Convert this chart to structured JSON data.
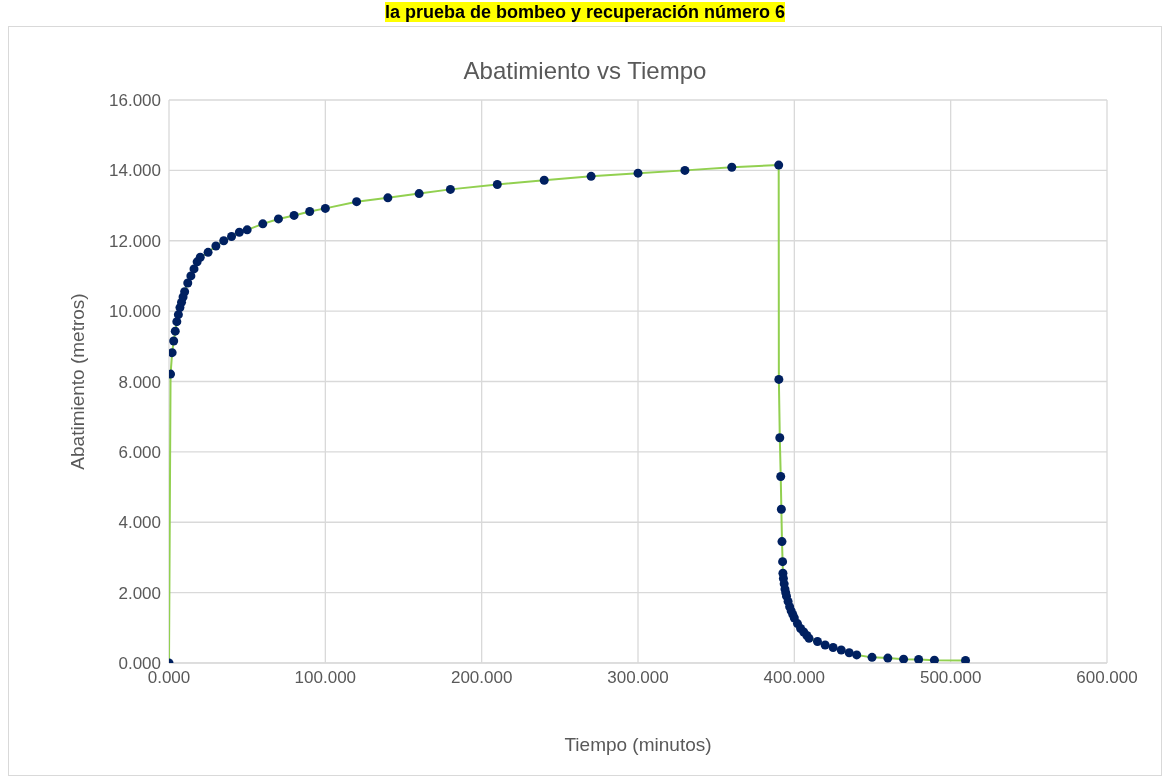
{
  "chart_data": {
    "type": "line",
    "title": "Abatimiento vs Tiempo",
    "xlabel": "Tiempo (minutos)",
    "ylabel": "Abatimiento (metros)",
    "annotations": [
      "la prueba de bombeo y recuperación número 6"
    ],
    "x": [
      0,
      1,
      2,
      3,
      4,
      5,
      6,
      7,
      8,
      9,
      10,
      12,
      14,
      16,
      18,
      20,
      25,
      30,
      35,
      40,
      45,
      50,
      60,
      70,
      80,
      90,
      100,
      120,
      140,
      160,
      180,
      210,
      240,
      270,
      300,
      330,
      360,
      390,
      390.1,
      390.7,
      391.3,
      391.7,
      392.1,
      392.5,
      392.7,
      393,
      393.5,
      394,
      394.5,
      395,
      396,
      397,
      398,
      399,
      400,
      402,
      404,
      406,
      408,
      409.4,
      414.8,
      419.7,
      424.8,
      430,
      435.1,
      439.9,
      449.7,
      459.8,
      469.9,
      479.5,
      489.6,
      509.5
    ],
    "series": [
      {
        "color": "#92d050",
        "values": [
          0,
          8.21,
          8.82,
          9.15,
          9.43,
          9.7,
          9.9,
          10.1,
          10.25,
          10.4,
          10.55,
          10.8,
          11.0,
          11.2,
          11.4,
          11.53,
          11.67,
          11.85,
          12.0,
          12.12,
          12.24,
          12.31,
          12.48,
          12.62,
          12.72,
          12.83,
          12.92,
          13.11,
          13.22,
          13.34,
          13.46,
          13.6,
          13.72,
          13.83,
          13.92,
          14.0,
          14.09,
          14.15,
          8.06,
          6.4,
          5.3,
          4.37,
          3.45,
          2.88,
          2.55,
          2.4,
          2.25,
          2.1,
          2.0,
          1.9,
          1.75,
          1.6,
          1.48,
          1.38,
          1.28,
          1.12,
          0.98,
          0.88,
          0.78,
          0.7,
          0.61,
          0.51,
          0.44,
          0.37,
          0.29,
          0.23,
          0.16,
          0.14,
          0.11,
          0.1,
          0.08,
          0.07
        ]
      }
    ],
    "marker": "circle",
    "line_style": "solid",
    "grid": true,
    "legend": false,
    "xlim": [
      0,
      600
    ],
    "xticks": [
      {
        "value": 0,
        "label": "0.000"
      },
      {
        "value": 100,
        "label": "100.000"
      },
      {
        "value": 200,
        "label": "200.000"
      },
      {
        "value": 300,
        "label": "300.000"
      },
      {
        "value": 400,
        "label": "400.000"
      },
      {
        "value": 500,
        "label": "500.000"
      },
      {
        "value": 600,
        "label": "600.000"
      }
    ],
    "ylim": [
      0,
      16
    ],
    "yticks": [
      {
        "value": 0,
        "label": "0.000"
      },
      {
        "value": 2,
        "label": "2.000"
      },
      {
        "value": 4,
        "label": "4.000"
      },
      {
        "value": 6,
        "label": "6.000"
      },
      {
        "value": 8,
        "label": "8.000"
      },
      {
        "value": 10,
        "label": "10.000"
      },
      {
        "value": 12,
        "label": "12.000"
      },
      {
        "value": 14,
        "label": "14.000"
      },
      {
        "value": 16,
        "label": "16.000"
      }
    ]
  }
}
